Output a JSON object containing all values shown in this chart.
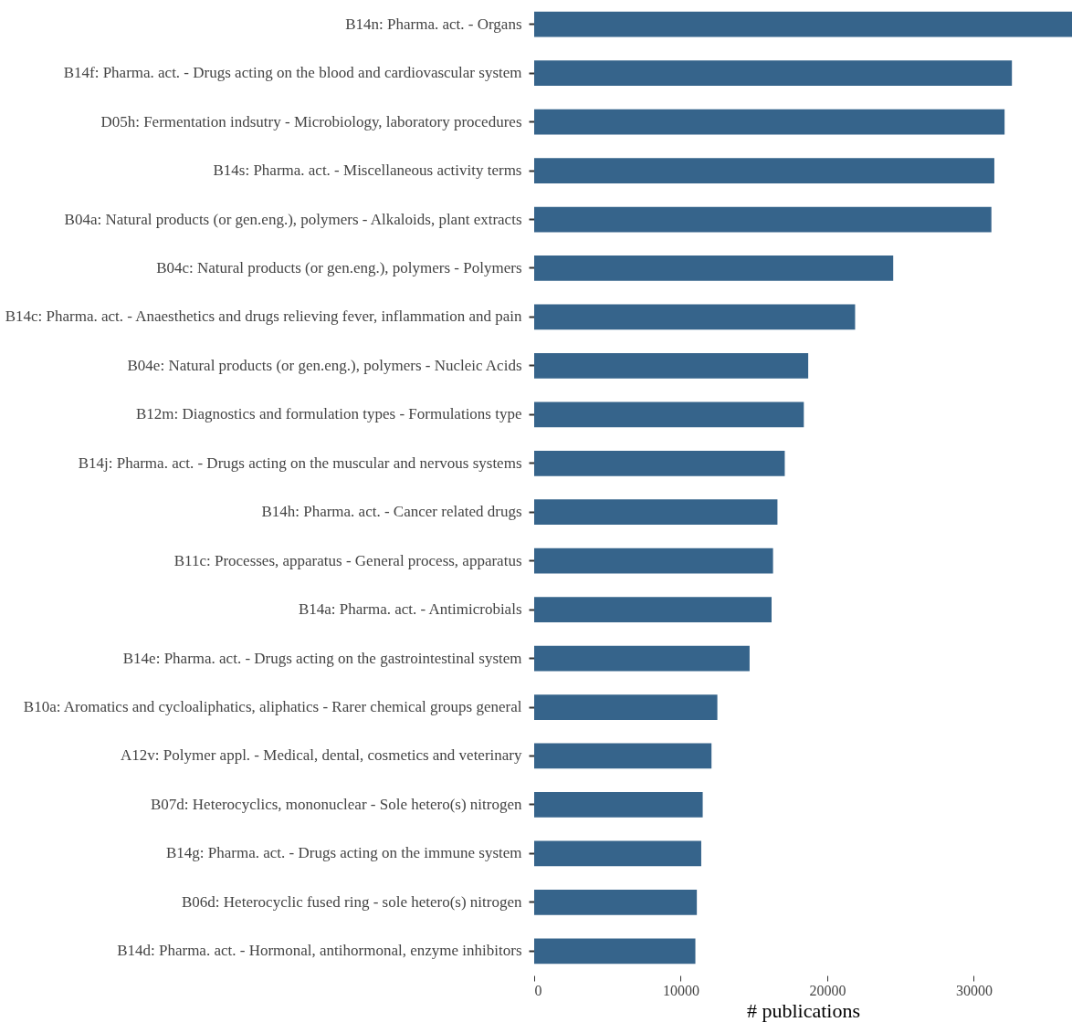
{
  "chart_data": {
    "type": "bar",
    "orientation": "horizontal",
    "xlabel": "# publications",
    "categories": [
      "B14n: Pharma. act. - Organs",
      "B14f: Pharma. act. - Drugs acting on the blood and cardiovascular system",
      "D05h: Fermentation indsutry - Microbiology, laboratory procedures",
      "B14s: Pharma. act. - Miscellaneous activity terms",
      "B04a: Natural products (or gen.eng.), polymers - Alkaloids, plant extracts",
      "B04c: Natural products (or gen.eng.), polymers - Polymers",
      "B14c: Pharma. act. - Anaesthetics and drugs relieving fever, inflammation and pain",
      "B04e: Natural products (or gen.eng.), polymers - Nucleic Acids",
      "B12m: Diagnostics and formulation types - Formulations type",
      "B14j: Pharma. act. - Drugs acting on the muscular and nervous systems",
      "B14h: Pharma. act. - Cancer related drugs",
      "B11c: Processes, apparatus - General process, apparatus",
      "B14a: Pharma. act. - Antimicrobials",
      "B14e: Pharma. act. - Drugs acting on the gastrointestinal system",
      "B10a: Aromatics and cycloaliphatics, aliphatics - Rarer chemical groups general",
      "A12v: Polymer appl. - Medical, dental, cosmetics and veterinary",
      "B07d: Heterocyclics, mononuclear - Sole hetero(s) nitrogen",
      "B14g: Pharma. act. - Drugs acting on the immune system",
      "B06d: Heterocyclic fused ring - sole hetero(s) nitrogen",
      "B14d: Pharma. act. - Hormonal, antihormonal, enzyme inhibitors"
    ],
    "values": [
      36700,
      32600,
      32100,
      31400,
      31200,
      24500,
      21900,
      18700,
      18400,
      17100,
      16600,
      16300,
      16200,
      14700,
      12500,
      12100,
      11500,
      11400,
      11100,
      11000
    ],
    "color": "#36648b",
    "xlim": [
      0,
      36700
    ],
    "xticks": [
      0,
      10000,
      20000,
      30000
    ],
    "grid": false
  }
}
